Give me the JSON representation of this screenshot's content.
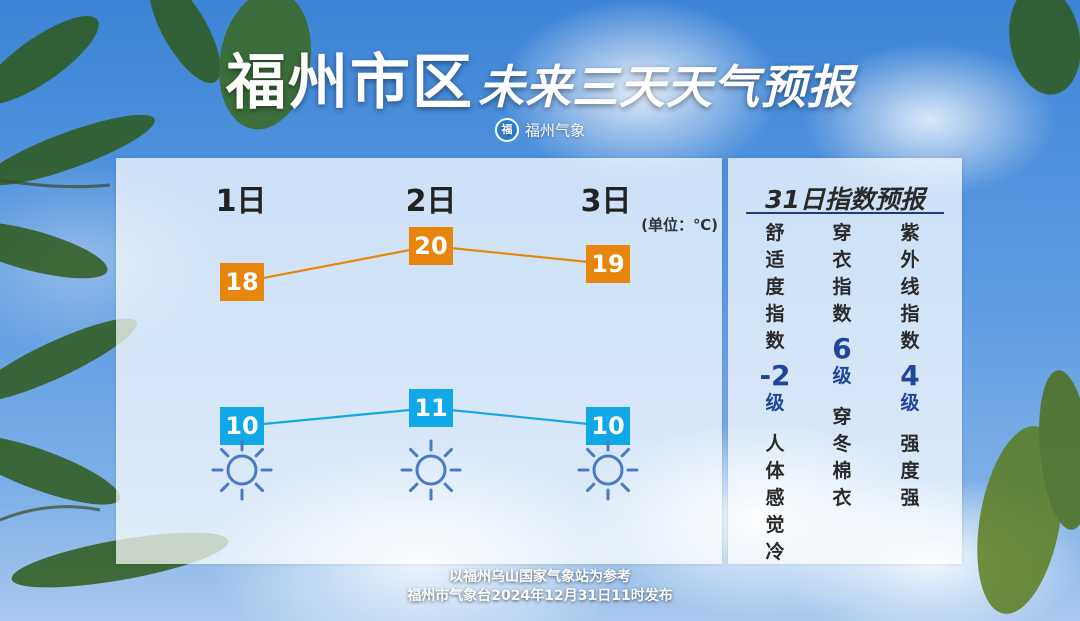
{
  "title": {
    "main": "福州市区",
    "sub": "未来三天天气预报"
  },
  "source": {
    "logo_text": "福",
    "name": "福州气象"
  },
  "forecast": {
    "unit_label": "(单位：℃)",
    "days": [
      {
        "label": "1日",
        "high": "18",
        "low": "10",
        "icon": "sun-icon"
      },
      {
        "label": "2日",
        "high": "20",
        "low": "11",
        "icon": "sun-icon"
      },
      {
        "label": "3日",
        "high": "19",
        "low": "10",
        "icon": "sun-icon"
      }
    ]
  },
  "chart_data": {
    "type": "line",
    "categories": [
      "1日",
      "2日",
      "3日"
    ],
    "series": [
      {
        "values": [
          18,
          20,
          19
        ],
        "color": "#e8850c"
      },
      {
        "values": [
          10,
          11,
          10
        ],
        "color": "#11a8e8"
      }
    ]
  },
  "index": {
    "title": "31日指数预报",
    "items": [
      {
        "name": "舒适度指数",
        "value": "-2",
        "unit": "级",
        "desc": "人体感觉冷"
      },
      {
        "name": "穿衣指数",
        "value": "6",
        "unit": "级",
        "desc": "穿冬棉衣"
      },
      {
        "name": "紫外线指数",
        "value": "4",
        "unit": "级",
        "desc": "强度 强"
      }
    ]
  },
  "footer": {
    "line1": "以福州乌山国家气象站为参考",
    "line2": "福州市气象台2024年12月31日11时发布"
  },
  "colors": {
    "high": "#e8850c",
    "low": "#11a8e8",
    "index_value": "#1f4799",
    "icon": "#4a79c8"
  }
}
